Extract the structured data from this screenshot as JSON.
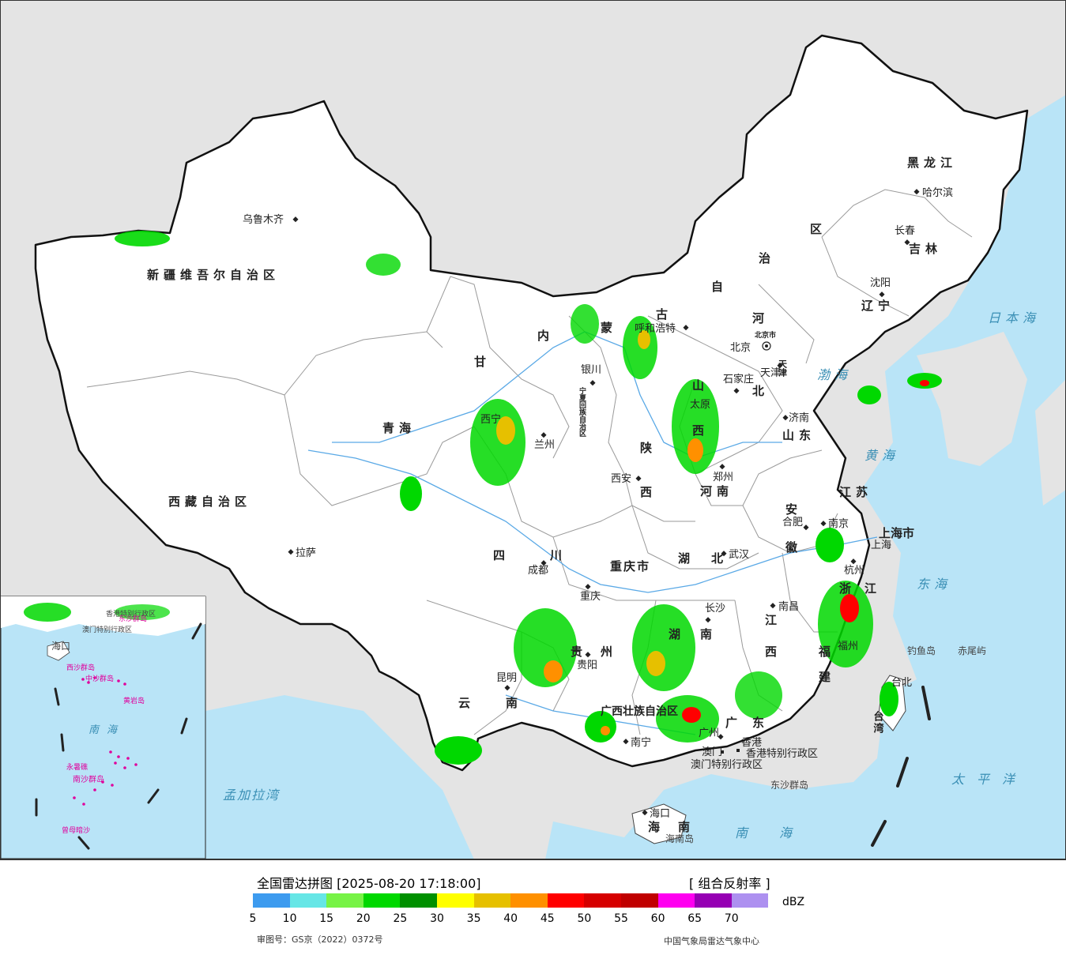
{
  "legend": {
    "title": "全国雷达拼图 [2025-08-20 17:18:00]",
    "product": "[ 组合反射率 ]",
    "unit": "dBZ",
    "ticks": [
      "5",
      "10",
      "15",
      "20",
      "25",
      "30",
      "35",
      "40",
      "45",
      "50",
      "55",
      "60",
      "65",
      "70"
    ],
    "colors": [
      "#3d9bef",
      "#66e6e6",
      "#77f346",
      "#00d800",
      "#009000",
      "#ffff00",
      "#e6c000",
      "#ff9000",
      "#ff0000",
      "#d60000",
      "#c00000",
      "#ff00f0",
      "#9600b4",
      "#ad90f0"
    ],
    "review_no": "审图号：GS京（2022）0372号",
    "source": "中国气象局雷达气象中心"
  },
  "map": {
    "colors": {
      "sea": "#b9e4f7",
      "land_outside": "#e4e4e4",
      "china": "#ffffff",
      "border": "#111111",
      "province": "#9a9a9a",
      "river": "#5aa9e6"
    },
    "provinces": [
      "新疆维吾尔自治区",
      "西藏自治区",
      "青海",
      "甘",
      "内",
      "蒙",
      "古",
      "自",
      "治",
      "区",
      "黑龙江",
      "吉林",
      "辽宁",
      "河",
      "北",
      "山东",
      "山",
      "西",
      "陕",
      "西",
      "河南",
      "江苏",
      "安",
      "徽",
      "四",
      "川",
      "重庆市",
      "湖",
      "北",
      "湖",
      "南",
      "江",
      "西",
      "浙",
      "江",
      "福",
      "建",
      "云",
      "南",
      "贵",
      "州",
      "广西壮族自治区",
      "广",
      "东",
      "海",
      "南",
      "上海市",
      "宁夏回族自治区",
      "天津",
      "北京市"
    ],
    "cities": [
      "乌鲁木齐",
      "拉萨",
      "呼和浩特",
      "银川",
      "兰州",
      "西宁",
      "西安",
      "太原",
      "石家庄",
      "北京",
      "天津",
      "济南",
      "郑州",
      "合肥",
      "南京",
      "上海",
      "杭州",
      "武汉",
      "长沙",
      "南昌",
      "福州",
      "成都",
      "重庆",
      "贵阳",
      "昆明",
      "南宁",
      "广州",
      "澳门",
      "香港",
      "海口",
      "沈阳",
      "长春",
      "哈尔滨",
      "台北"
    ],
    "seas": [
      "日本海",
      "渤海",
      "黄海",
      "东海",
      "太平洋",
      "南海",
      "孟加拉湾"
    ],
    "islands": [
      "钓鱼岛",
      "赤尾屿",
      "东沙群岛",
      "海南岛"
    ],
    "regions": [
      "香港特别行政区",
      "澳门特别行政区",
      "台湾"
    ],
    "inset": {
      "labels": [
        "南海",
        "海口",
        "东沙群岛",
        "西沙群岛",
        "中沙群岛",
        "黄岩岛",
        "永暑礁",
        "南沙群岛",
        "曾母暗沙",
        "香港特别行政区",
        "澳门特别行政区"
      ]
    }
  }
}
